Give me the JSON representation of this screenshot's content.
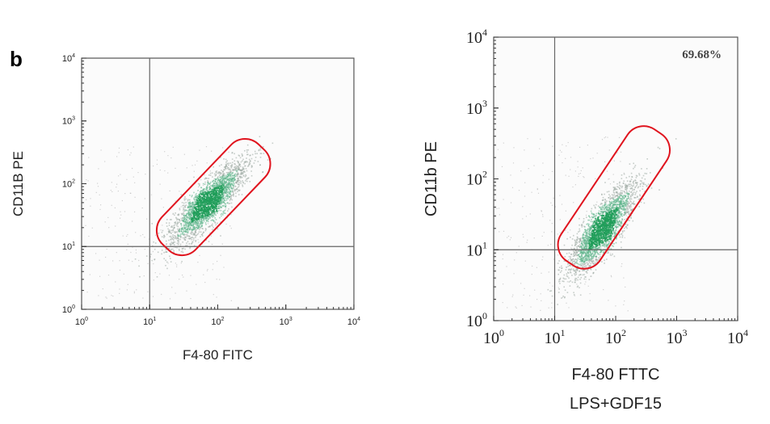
{
  "panel_label": "b",
  "chart_data": [
    {
      "type": "scatter",
      "subtype": "flow-cytometry-density-dot-plot",
      "xlabel": "F4-80 FITC",
      "ylabel": "CD11B PE",
      "x_scale": "log",
      "y_scale": "log",
      "xlim": [
        1,
        10000
      ],
      "ylim": [
        1,
        10000
      ],
      "x_ticks": [
        {
          "base": "10",
          "exp": "0"
        },
        {
          "base": "10",
          "exp": "1"
        },
        {
          "base": "10",
          "exp": "2"
        },
        {
          "base": "10",
          "exp": "3"
        },
        {
          "base": "10",
          "exp": "4"
        }
      ],
      "y_ticks": [
        {
          "base": "10",
          "exp": "0"
        },
        {
          "base": "10",
          "exp": "1"
        },
        {
          "base": "10",
          "exp": "2"
        },
        {
          "base": "10",
          "exp": "3"
        },
        {
          "base": "10",
          "exp": "4"
        }
      ],
      "quadrant_lines": {
        "x": 10,
        "y": 10
      },
      "population": {
        "center_x": 70,
        "center_y": 50,
        "x_range": [
          10,
          500
        ],
        "y_range": [
          3,
          400
        ],
        "color": "#1f9e5a"
      },
      "gate": {
        "color": "#e0141e",
        "shape": "rounded-rectangle",
        "x_range": [
          25,
          300
        ],
        "y_range": [
          15,
          250
        ]
      },
      "annotations": []
    },
    {
      "type": "scatter",
      "subtype": "flow-cytometry-density-dot-plot",
      "xlabel": "F4-80 FTTC",
      "ylabel": "CD11b PE",
      "caption": "LPS+GDF15",
      "x_scale": "log",
      "y_scale": "log",
      "xlim": [
        1,
        10000
      ],
      "ylim": [
        1,
        10000
      ],
      "x_ticks": [
        {
          "base": "10",
          "exp": "0"
        },
        {
          "base": "10",
          "exp": "1"
        },
        {
          "base": "10",
          "exp": "2"
        },
        {
          "base": "10",
          "exp": "3"
        },
        {
          "base": "10",
          "exp": "4"
        }
      ],
      "y_ticks": [
        {
          "base": "10",
          "exp": "0"
        },
        {
          "base": "10",
          "exp": "1"
        },
        {
          "base": "10",
          "exp": "2"
        },
        {
          "base": "10",
          "exp": "3"
        },
        {
          "base": "10",
          "exp": "4"
        }
      ],
      "quadrant_lines": {
        "x": 10,
        "y": 10
      },
      "population": {
        "center_x": 60,
        "center_y": 20,
        "x_range": [
          15,
          500
        ],
        "y_range": [
          3,
          300
        ],
        "color": "#1f9e5a"
      },
      "gate": {
        "color": "#e0141e",
        "shape": "rounded-rectangle",
        "x_range": [
          25,
          350
        ],
        "y_range": [
          10,
          300
        ]
      },
      "annotations": [
        {
          "text": "69.68%",
          "position": "top-right"
        }
      ]
    }
  ]
}
